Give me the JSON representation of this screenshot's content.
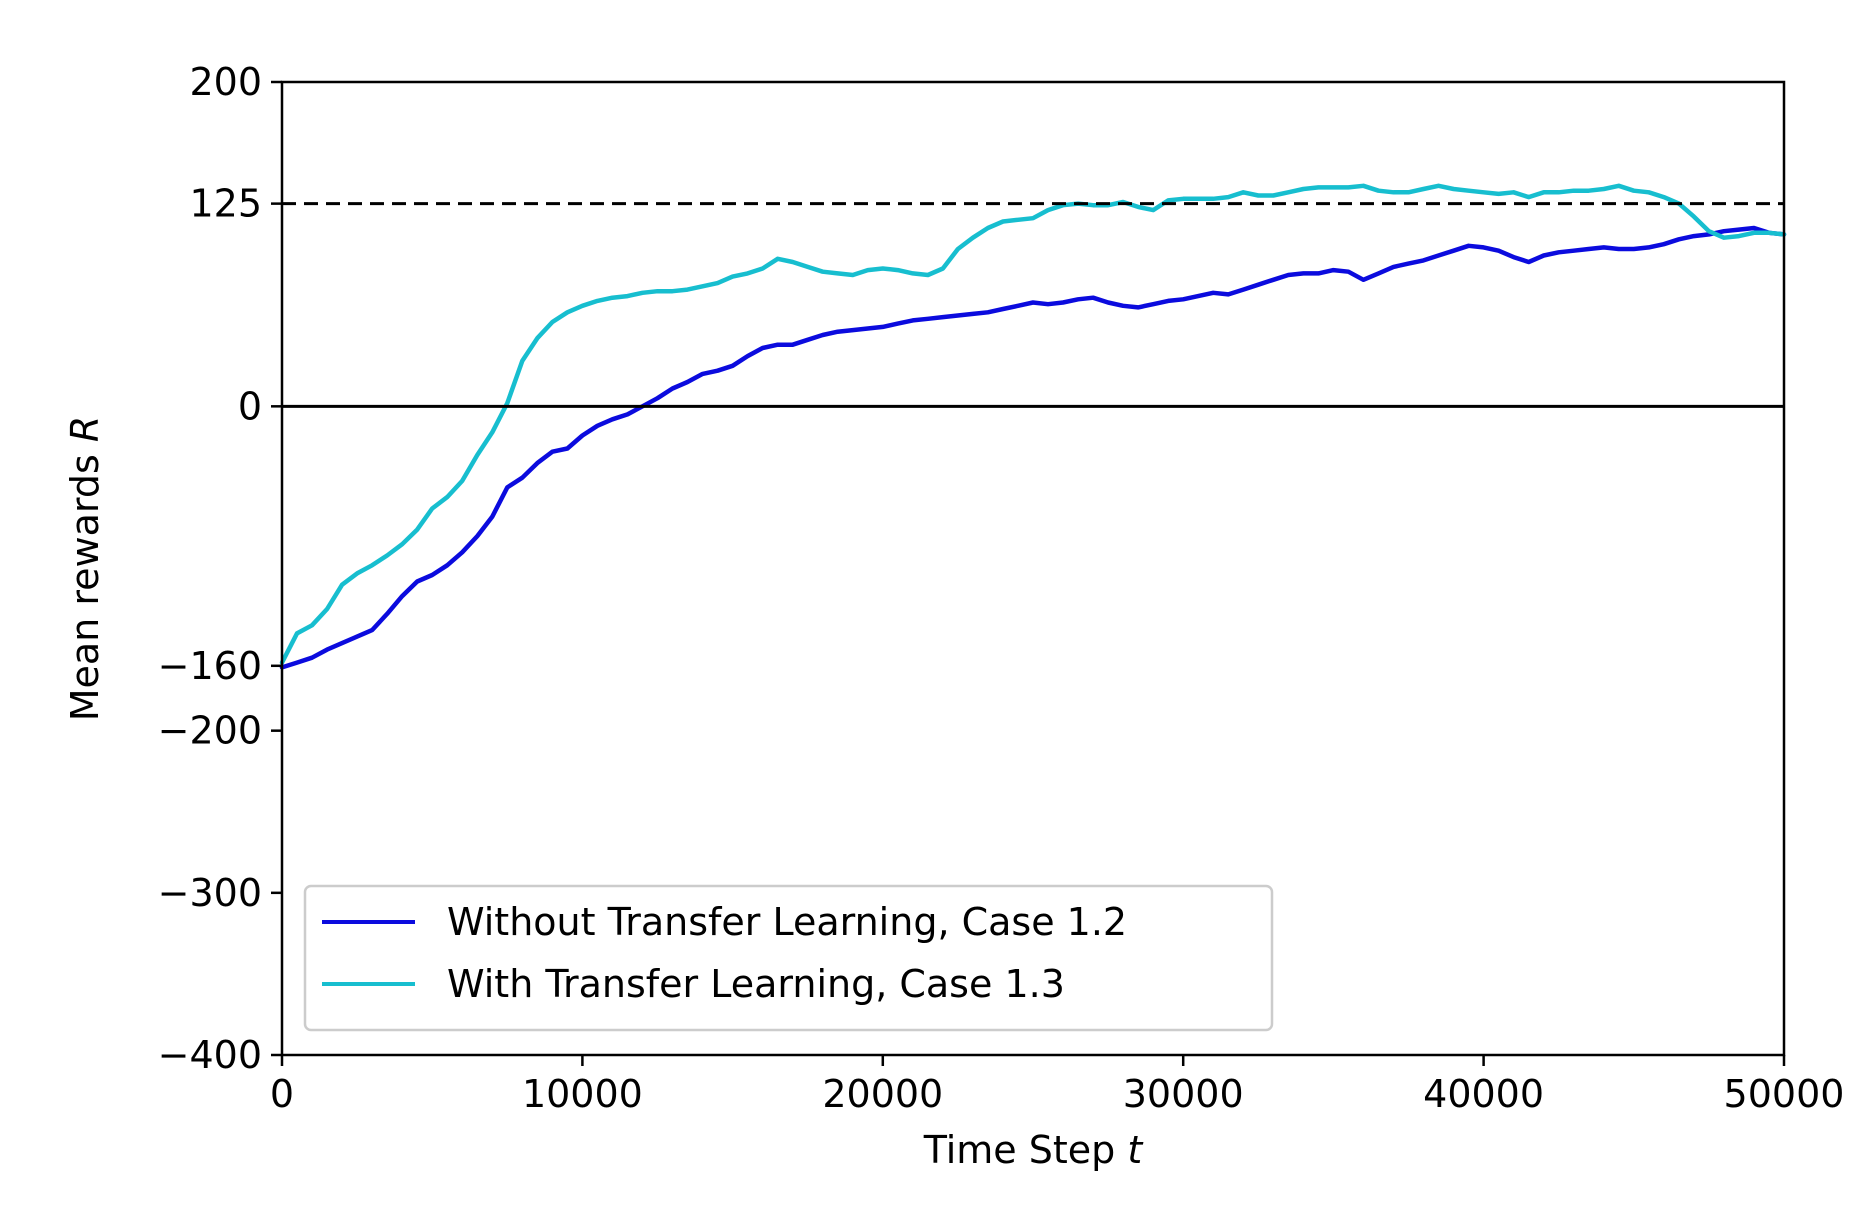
{
  "chart_data": {
    "type": "line",
    "title": "",
    "xlabel": "Time Step",
    "xlabel_var": "t",
    "ylabel": "Mean rewards",
    "ylabel_var": "R",
    "xlim": [
      0,
      50000
    ],
    "ylim": [
      -400,
      200
    ],
    "xticks": [
      0,
      10000,
      20000,
      30000,
      40000,
      50000
    ],
    "xtick_labels": [
      "0",
      "10000",
      "20000",
      "30000",
      "40000",
      "50000"
    ],
    "yticks": [
      -400,
      -300,
      -200,
      -160,
      0,
      125,
      200
    ],
    "ytick_labels": [
      "−400",
      "−300",
      "−200",
      "−160",
      "0",
      "125",
      "200"
    ],
    "grid": false,
    "legend_position": "lower-left",
    "reference_lines": [
      {
        "y": 125,
        "style": "dashed",
        "color": "#000000"
      },
      {
        "y": 0,
        "style": "solid",
        "color": "#000000"
      }
    ],
    "series": [
      {
        "name": "Without Transfer Learning, Case 1.2",
        "color": "#0b0bde",
        "x": [
          0,
          500,
          1000,
          1500,
          2000,
          2500,
          3000,
          3500,
          4000,
          4500,
          5000,
          5500,
          6000,
          6500,
          7000,
          7500,
          8000,
          8500,
          9000,
          9500,
          10000,
          10500,
          11000,
          11500,
          12000,
          12500,
          13000,
          13500,
          14000,
          14500,
          15000,
          15500,
          16000,
          16500,
          17000,
          17500,
          18000,
          18500,
          19000,
          19500,
          20000,
          20500,
          21000,
          21500,
          22000,
          22500,
          23000,
          23500,
          24000,
          24500,
          25000,
          25500,
          26000,
          26500,
          27000,
          27500,
          28000,
          28500,
          29000,
          29500,
          30000,
          30500,
          31000,
          31500,
          32000,
          32500,
          33000,
          33500,
          34000,
          34500,
          35000,
          35500,
          36000,
          36500,
          37000,
          37500,
          38000,
          38500,
          39000,
          39500,
          40000,
          40500,
          41000,
          41500,
          42000,
          42500,
          43000,
          43500,
          44000,
          44500,
          45000,
          45500,
          46000,
          46500,
          47000,
          47500,
          48000,
          48500,
          49000,
          49500,
          50000
        ],
        "y": [
          -161,
          -158,
          -155,
          -150,
          -146,
          -142,
          -138,
          -128,
          -117,
          -108,
          -104,
          -98,
          -90,
          -80,
          -68,
          -50,
          -44,
          -35,
          -28,
          -26,
          -18,
          -12,
          -8,
          -5,
          0,
          5,
          11,
          15,
          20,
          22,
          25,
          31,
          36,
          38,
          38,
          41,
          44,
          46,
          47,
          48,
          49,
          51,
          53,
          54,
          55,
          56,
          57,
          58,
          60,
          62,
          64,
          63,
          64,
          66,
          67,
          64,
          62,
          61,
          63,
          65,
          66,
          68,
          70,
          69,
          72,
          75,
          78,
          81,
          82,
          82,
          84,
          83,
          78,
          82,
          86,
          88,
          90,
          93,
          96,
          99,
          98,
          96,
          92,
          89,
          93,
          95,
          96,
          97,
          98,
          97,
          97,
          98,
          100,
          103,
          105,
          106,
          108,
          109,
          110,
          107,
          106
        ]
      },
      {
        "name": "With Transfer Learning, Case 1.3",
        "color": "#17becf",
        "x": [
          0,
          500,
          1000,
          1500,
          2000,
          2500,
          3000,
          3500,
          4000,
          4500,
          5000,
          5500,
          6000,
          6500,
          7000,
          7500,
          8000,
          8500,
          9000,
          9500,
          10000,
          10500,
          11000,
          11500,
          12000,
          12500,
          13000,
          13500,
          14000,
          14500,
          15000,
          15500,
          16000,
          16500,
          17000,
          17500,
          18000,
          18500,
          19000,
          19500,
          20000,
          20500,
          21000,
          21500,
          22000,
          22500,
          23000,
          23500,
          24000,
          24500,
          25000,
          25500,
          26000,
          26500,
          27000,
          27500,
          28000,
          28500,
          29000,
          29500,
          30000,
          30500,
          31000,
          31500,
          32000,
          32500,
          33000,
          33500,
          34000,
          34500,
          35000,
          35500,
          36000,
          36500,
          37000,
          37500,
          38000,
          38500,
          39000,
          39500,
          40000,
          40500,
          41000,
          41500,
          42000,
          42500,
          43000,
          43500,
          44000,
          44500,
          45000,
          45500,
          46000,
          46500,
          47000,
          47500,
          48000,
          48500,
          49000,
          49500,
          50000
        ],
        "y": [
          -158,
          -140,
          -135,
          -125,
          -110,
          -103,
          -98,
          -92,
          -85,
          -76,
          -63,
          -56,
          -46,
          -30,
          -16,
          2,
          28,
          42,
          52,
          58,
          62,
          65,
          67,
          68,
          70,
          71,
          71,
          72,
          74,
          76,
          80,
          82,
          85,
          91,
          89,
          86,
          83,
          82,
          81,
          84,
          85,
          84,
          82,
          81,
          85,
          97,
          104,
          110,
          114,
          115,
          116,
          121,
          124,
          125,
          124,
          124,
          126,
          123,
          121,
          127,
          128,
          128,
          128,
          129,
          132,
          130,
          130,
          132,
          134,
          135,
          135,
          135,
          136,
          133,
          132,
          132,
          134,
          136,
          134,
          133,
          132,
          131,
          132,
          129,
          132,
          132,
          133,
          133,
          134,
          136,
          133,
          132,
          129,
          125,
          117,
          108,
          104,
          105,
          107,
          107,
          106
        ]
      }
    ]
  }
}
